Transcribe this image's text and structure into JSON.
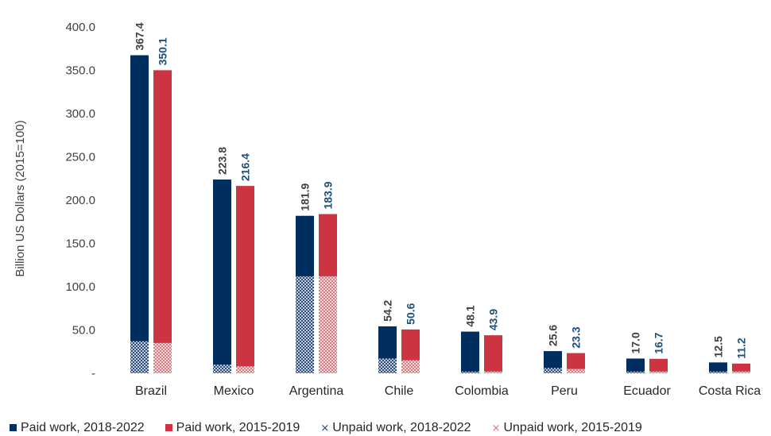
{
  "chart_data": {
    "type": "bar",
    "ylabel": "Billion US Dollars (2015=100)",
    "ylim": [
      0,
      400
    ],
    "yticks": [
      "-",
      "50.0",
      "100.0",
      "150.0",
      "200.0",
      "250.0",
      "300.0",
      "350.0",
      "400.0"
    ],
    "grid": false,
    "categories": [
      "Brazil",
      "Mexico",
      "Argentina",
      "Chile",
      "Colombia",
      "Peru",
      "Ecuador",
      "Costa Rica"
    ],
    "series": [
      {
        "name": "Paid work, 2018-2022",
        "color": "#002F5F",
        "values": [
          367.4,
          223.8,
          181.9,
          54.2,
          48.1,
          25.6,
          17.0,
          12.5
        ],
        "labels": [
          "367.4",
          "223.8",
          "181.9",
          "54.2",
          "48.1",
          "25.6",
          "17.0",
          "12.5"
        ]
      },
      {
        "name": "Paid work, 2015-2019",
        "color": "#CC3441",
        "values": [
          350.1,
          216.4,
          183.9,
          50.6,
          43.9,
          23.3,
          16.7,
          11.2
        ],
        "labels": [
          "350.1",
          "216.4",
          "183.9",
          "50.6",
          "43.9",
          "23.3",
          "16.7",
          "11.2"
        ]
      },
      {
        "name": "Unpaid work, 2018-2022",
        "color": "#002F5F",
        "pattern": "crosshatch",
        "values": [
          37,
          10,
          112,
          17,
          2,
          6,
          2,
          2
        ]
      },
      {
        "name": "Unpaid work, 2015-2019",
        "color": "#CC3441",
        "pattern": "crosshatch",
        "values": [
          35,
          8,
          112,
          15,
          2,
          5,
          2,
          2
        ]
      }
    ],
    "label_colors": [
      "#404040",
      "#1F4E79"
    ],
    "legend_position": "bottom",
    "legend_marker": "⨯"
  }
}
